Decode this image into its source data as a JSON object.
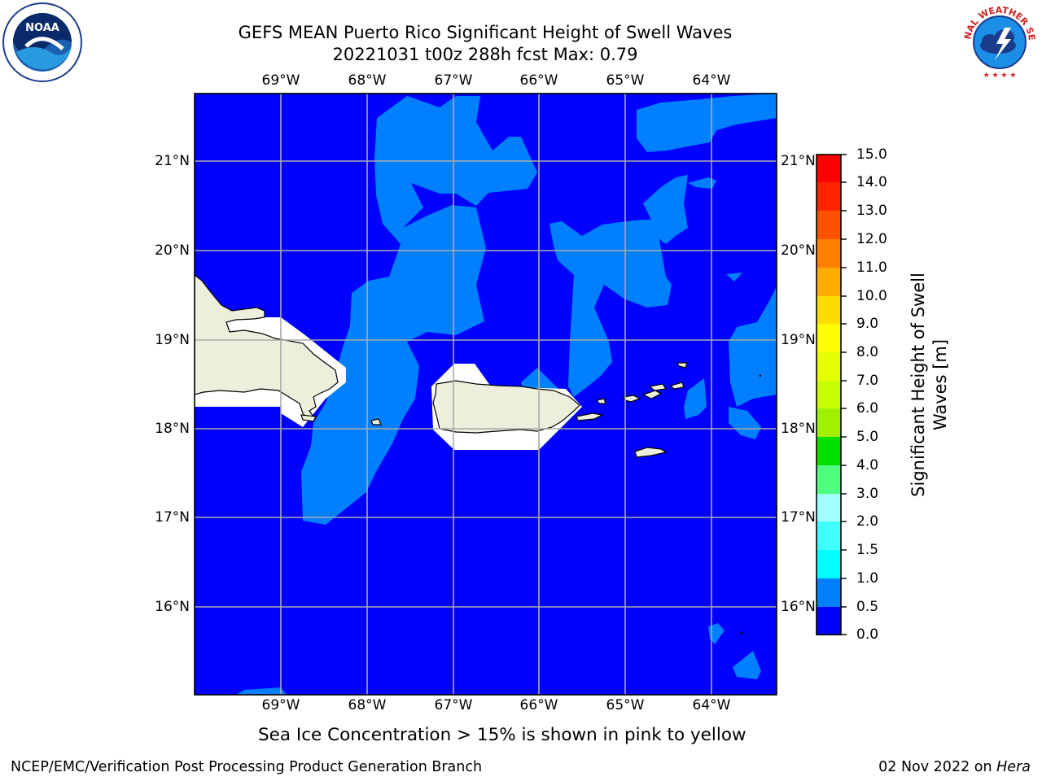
{
  "title": {
    "line1": "GEFS MEAN Puerto Rico Significant Height of Swell Waves",
    "line2": "20221031 t00z 288h fcst   Max: 0.79"
  },
  "logos": {
    "left": {
      "name": "noaa-logo",
      "text": "NOAA"
    },
    "right": {
      "name": "nws-logo",
      "text": "NATIONAL WEATHER SERVICE"
    }
  },
  "map": {
    "lon_labels": [
      "69°W",
      "68°W",
      "67°W",
      "66°W",
      "65°W",
      "64°W"
    ],
    "lat_labels": [
      "21°N",
      "20°N",
      "19°N",
      "18°N",
      "17°N",
      "16°N"
    ],
    "colors": {
      "ocean_deep": "#0000ff",
      "ocean_swell": "#0080ff",
      "land": "#eeeedd",
      "ice_mask": "#ffffff",
      "grid": "#aaaaaa"
    }
  },
  "colorbar": {
    "label": "Significant Height of Swell Waves [m]",
    "label_line1": "Significant Height of Swell",
    "label_line2": "Waves [m]",
    "ticks": [
      "15.0",
      "14.0",
      "13.0",
      "12.0",
      "11.0",
      "10.0",
      "9.0",
      "8.0",
      "7.0",
      "6.0",
      "5.0",
      "4.0",
      "3.0",
      "2.0",
      "1.5",
      "1.0",
      "0.5",
      "0.0"
    ],
    "colors_top_to_bottom": [
      "#ff0000",
      "#ff2400",
      "#ff5200",
      "#ff8000",
      "#ffae00",
      "#ffdc00",
      "#ffff00",
      "#e6ff00",
      "#c8ff00",
      "#a0f000",
      "#50e000",
      "#00e000",
      "#50ff80",
      "#a0ffff",
      "#40ffff",
      "#00ffff",
      "#0080ff",
      "#0000ff"
    ]
  },
  "caption": "Sea Ice Concentration > 15% is shown in pink to yellow",
  "footer": {
    "left": "NCEP/EMC/Verification Post Processing Product Generation Branch",
    "right_prefix": "02 Nov 2022 on ",
    "right_host": "Hera"
  }
}
